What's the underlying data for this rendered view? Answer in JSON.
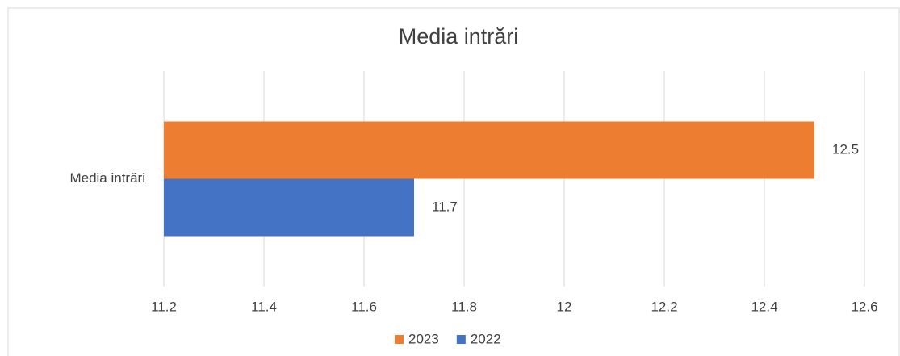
{
  "chart_data": {
    "type": "bar",
    "orientation": "horizontal",
    "title": "Media intrări",
    "categories": [
      "Media intrări"
    ],
    "series": [
      {
        "name": "2023",
        "color": "#ed7d31",
        "values": [
          12.5
        ]
      },
      {
        "name": "2022",
        "color": "#4472c4",
        "values": [
          11.7
        ]
      }
    ],
    "xlim": [
      11.2,
      12.6
    ],
    "xticks": [
      11.2,
      11.4,
      11.6,
      11.8,
      12,
      12.2,
      12.4,
      12.6
    ],
    "grid": true,
    "legend": "bottom"
  }
}
